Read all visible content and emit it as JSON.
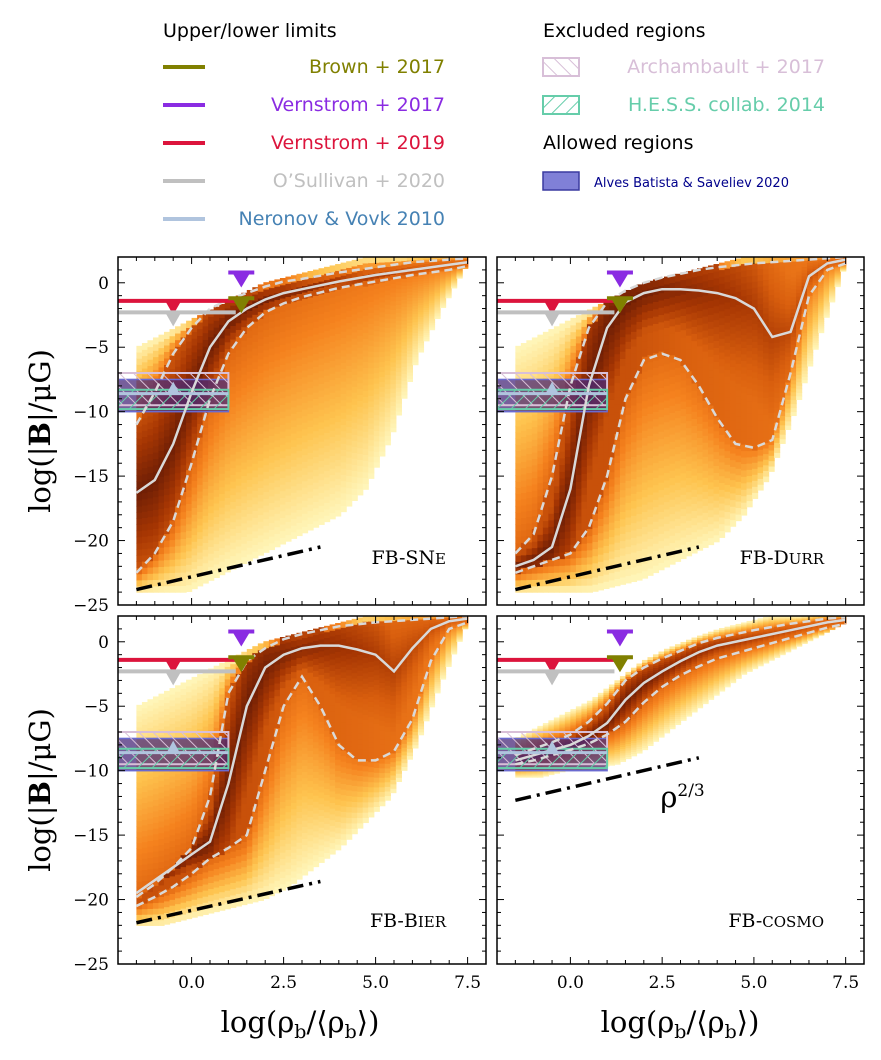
{
  "legend": {
    "upper_lower_title": "Upper/lower limits",
    "upper_lower": [
      {
        "label": "Brown + 2017",
        "color": "#808000"
      },
      {
        "label": "Vernstrom + 2017",
        "color": "#8a2be2"
      },
      {
        "label": "Vernstrom + 2019",
        "color": "#dc143c"
      },
      {
        "label": "O’Sullivan + 2020",
        "color": "#c0c0c0"
      },
      {
        "label": "Neronov & Vovk 2010",
        "color": "#b0c4de",
        "text_color": "#4682b4"
      }
    ],
    "excluded_title": "Excluded regions",
    "excluded": [
      {
        "label": "Archambault + 2017",
        "color": "#d8bfd8"
      },
      {
        "label": "H.E.S.S. collab. 2014",
        "color": "#66cdaa"
      }
    ],
    "allowed_title": "Allowed regions",
    "allowed": [
      {
        "label": "Alves Batista & Saveliev 2020",
        "color": "#6a6ad0",
        "text_color": "#00008b"
      }
    ]
  },
  "axes": {
    "xlabel": "log(ρ_b/⟨ρ_b⟩)",
    "xlabel_main": "log(ρ",
    "xlabel_sub": "b",
    "xlabel_mid": "/⟨ρ",
    "xlabel_end": "⟩)",
    "ylabel": "log(|B|/μG)",
    "ylabel_main": "log(|",
    "ylabel_b": "B",
    "ylabel_end": "|/μG)",
    "xticks": [
      "0.0",
      "2.5",
      "5.0",
      "7.5"
    ],
    "yticks": [
      "0",
      "−5",
      "−10",
      "−15",
      "−20",
      "−25"
    ]
  },
  "chart_data": [
    {
      "type": "heatmap",
      "panel": "FB-SNe",
      "label_main": "FB-SN",
      "label_small": "E",
      "xlim": [
        -2.0,
        8.0
      ],
      "ylim": [
        -25,
        2
      ],
      "median": {
        "x": [
          -1.5,
          -1,
          -0.5,
          0,
          0.5,
          1,
          1.5,
          2,
          2.5,
          3,
          4,
          5,
          6,
          7,
          7.5
        ],
        "y": [
          -16.3,
          -15.3,
          -12.5,
          -8.5,
          -5,
          -3,
          -2,
          -1.3,
          -0.8,
          -0.5,
          0.1,
          0.6,
          1.0,
          1.4,
          1.6
        ]
      },
      "p_low": {
        "x": [
          -1.5,
          -1,
          -0.5,
          0,
          0.5,
          1,
          1.5,
          2,
          2.5,
          3,
          4,
          5,
          6,
          7,
          7.5
        ],
        "y": [
          -22.5,
          -21,
          -18.5,
          -14,
          -9,
          -5.5,
          -3.5,
          -2.3,
          -1.6,
          -1.1,
          -0.4,
          0.1,
          0.6,
          1.0,
          1.3
        ]
      },
      "p_high": {
        "x": [
          -1.5,
          -1,
          -0.5,
          0,
          0.5,
          1,
          1.5,
          2,
          2.5,
          3,
          4,
          5,
          6,
          7,
          7.5
        ],
        "y": [
          -11,
          -8.5,
          -5.5,
          -3.5,
          -2,
          -1.3,
          -0.8,
          -0.3,
          0.1,
          0.3,
          0.8,
          1.2,
          1.6,
          1.8,
          1.9
        ]
      },
      "slope_line": {
        "x": [
          -1.5,
          3.5
        ],
        "y": [
          -23.8,
          -20.5
        ]
      },
      "density": {
        "xmin": -1.5,
        "xmax": 7.5,
        "lower": [
          -24,
          -24,
          -24,
          -23,
          -22,
          -21,
          -20,
          -19,
          -18,
          -16,
          -12,
          -6,
          -2,
          1.5
        ],
        "upper": [
          -5,
          -4,
          -3,
          -2,
          -1,
          0,
          0.5,
          1,
          1.5,
          2,
          2,
          2,
          2,
          2
        ],
        "peak_shape": "sigmoid"
      }
    },
    {
      "type": "heatmap",
      "panel": "FB-Durr",
      "label_main": "FB-D",
      "label_small": "URR",
      "xlim": [
        -2.0,
        8.0
      ],
      "ylim": [
        -25,
        2
      ],
      "median": {
        "x": [
          -1.5,
          -1,
          -0.5,
          0,
          0.5,
          1,
          1.5,
          2,
          2.5,
          3,
          3.5,
          4,
          4.5,
          5,
          5.5,
          6,
          6.5,
          7,
          7.5
        ],
        "y": [
          -22,
          -21.5,
          -20.5,
          -16,
          -8,
          -3.5,
          -1.5,
          -0.8,
          -0.5,
          -0.5,
          -0.6,
          -0.8,
          -1.2,
          -2,
          -4.2,
          -3.8,
          0.5,
          1.5,
          1.8
        ]
      },
      "p_low": {
        "x": [
          -1.5,
          -1,
          -0.5,
          0,
          0.5,
          1,
          1.5,
          2,
          2.5,
          3,
          3.5,
          4,
          4.5,
          5,
          5.5,
          6,
          6.5,
          7,
          7.5
        ],
        "y": [
          -22.5,
          -22,
          -21.5,
          -21,
          -19,
          -15,
          -9,
          -6,
          -5.5,
          -6,
          -8,
          -10.5,
          -12.5,
          -12.8,
          -12.2,
          -7,
          -1,
          1,
          1.5
        ]
      },
      "p_high": {
        "x": [
          -1.5,
          -1,
          -0.5,
          0,
          0.5,
          1,
          1.5,
          2,
          2.5,
          3,
          3.5,
          4,
          5,
          6,
          7,
          7.5
        ],
        "y": [
          -21,
          -19.5,
          -15,
          -8,
          -3.5,
          -1.5,
          -0.6,
          0,
          0.4,
          0.7,
          1,
          1.2,
          1.5,
          1.7,
          1.9,
          2
        ]
      },
      "slope_line": {
        "x": [
          -1.5,
          3.5
        ],
        "y": [
          -23.8,
          -20.5
        ]
      },
      "density": {
        "xmin": -1.5,
        "xmax": 7.5,
        "lower": [
          -24,
          -24,
          -24,
          -24,
          -23.5,
          -23,
          -22,
          -21,
          -20,
          -18,
          -15,
          -10,
          -4,
          1.5
        ],
        "upper": [
          -5,
          -4,
          -3,
          -2,
          -1,
          0,
          0.5,
          1,
          1.5,
          2,
          2,
          2,
          2,
          2
        ],
        "peak_shape": "sigmoid"
      }
    },
    {
      "type": "heatmap",
      "panel": "FB-Bier",
      "label_main": "FB-B",
      "label_small": "IER",
      "xlim": [
        -2.0,
        8.0
      ],
      "ylim": [
        -25,
        2
      ],
      "median": {
        "x": [
          -1.5,
          -1,
          -0.5,
          0,
          0.5,
          1,
          1.5,
          2,
          2.5,
          3,
          3.5,
          4,
          4.5,
          5,
          5.5,
          6,
          6.5,
          7,
          7.5
        ],
        "y": [
          -19.5,
          -18.5,
          -17.5,
          -16.5,
          -15.5,
          -11,
          -5,
          -2,
          -1,
          -0.5,
          -0.3,
          -0.3,
          -0.6,
          -1,
          -2.3,
          -0.5,
          1,
          1.6,
          1.8
        ]
      },
      "p_low": {
        "x": [
          -1.5,
          -1,
          -0.5,
          0,
          0.5,
          1,
          1.5,
          2,
          2.5,
          3,
          3.5,
          4,
          4.5,
          5,
          5.5,
          6,
          6.5,
          7,
          7.5
        ],
        "y": [
          -20.5,
          -19.8,
          -19,
          -18,
          -16.8,
          -16,
          -15,
          -10,
          -5,
          -2.7,
          -5,
          -8,
          -9.2,
          -9.2,
          -8.5,
          -6,
          -1.5,
          1,
          1.5
        ]
      },
      "p_high": {
        "x": [
          -1.5,
          -1,
          -0.5,
          0,
          0.5,
          1,
          1.5,
          2,
          2.5,
          3,
          3.5,
          4,
          5,
          6,
          7,
          7.5
        ],
        "y": [
          -19.8,
          -18.8,
          -17.5,
          -16,
          -12,
          -4,
          -1.5,
          -0.5,
          0.2,
          0.6,
          0.9,
          1.2,
          1.5,
          1.7,
          1.9,
          2
        ]
      },
      "slope_line": {
        "x": [
          -1.5,
          3.5
        ],
        "y": [
          -21.8,
          -18.6
        ]
      },
      "density": {
        "xmin": -1.5,
        "xmax": 7.5,
        "lower": [
          -22,
          -22,
          -21.5,
          -21,
          -20.5,
          -20,
          -19,
          -17.5,
          -16,
          -14,
          -12,
          -8,
          -3,
          1.5
        ],
        "upper": [
          -5,
          -4,
          -3,
          -2,
          -1,
          0,
          0.5,
          1,
          1.5,
          2,
          2,
          2,
          2,
          2
        ],
        "peak_shape": "sigmoid"
      }
    },
    {
      "type": "heatmap",
      "panel": "FB-cosmo",
      "label_main": "FB-",
      "label_small": "COSMO",
      "slope_label": "ρ",
      "slope_label_exp": "2/3",
      "xlim": [
        -2.0,
        8.0
      ],
      "ylim": [
        -25,
        2
      ],
      "median": {
        "x": [
          -1.5,
          -1,
          -0.5,
          0,
          0.5,
          1,
          1.5,
          2,
          2.5,
          3,
          3.5,
          4,
          5,
          6,
          7,
          7.5
        ],
        "y": [
          -9.2,
          -8.8,
          -8.4,
          -8,
          -7.3,
          -6.3,
          -4.5,
          -3.2,
          -2.3,
          -1.5,
          -0.8,
          -0.3,
          0.3,
          0.9,
          1.5,
          1.7
        ]
      },
      "p_low": {
        "x": [
          -1.5,
          -1,
          -0.5,
          0,
          0.5,
          1,
          1.5,
          2,
          2.5,
          3,
          3.5,
          4,
          5,
          6,
          7,
          7.5
        ],
        "y": [
          -9.5,
          -9.2,
          -8.8,
          -8.4,
          -7.9,
          -7.2,
          -6.2,
          -4.7,
          -3.5,
          -2.6,
          -1.9,
          -1.3,
          -0.5,
          0.3,
          1.1,
          1.4
        ]
      },
      "p_high": {
        "x": [
          -1.5,
          -1,
          -0.5,
          0,
          0.5,
          1,
          1.5,
          2,
          2.5,
          3,
          3.5,
          4,
          5,
          6,
          7,
          7.5
        ],
        "y": [
          -8.8,
          -8.3,
          -7.8,
          -7.2,
          -6.2,
          -4.8,
          -3,
          -2,
          -1.3,
          -0.7,
          -0.1,
          0.3,
          0.9,
          1.4,
          1.8,
          1.9
        ]
      },
      "slope_line": {
        "x": [
          -1.5,
          3.5
        ],
        "y": [
          -12.3,
          -9.0
        ]
      },
      "density": {
        "xmin": -1.5,
        "xmax": 7.5,
        "lower": [
          -10.5,
          -10.5,
          -10,
          -9.8,
          -9.5,
          -8.5,
          -7,
          -5.5,
          -4,
          -2.5,
          -1.5,
          -0.5,
          0.5,
          1.5
        ],
        "upper": [
          -7.5,
          -6.5,
          -5.5,
          -4.5,
          -3,
          -1.5,
          -0.5,
          0.3,
          1,
          1.5,
          2,
          2,
          2,
          2
        ],
        "peak_shape": "sigmoid"
      }
    }
  ],
  "observations": {
    "vernstrom2019_y": -1.4,
    "osullivan2020_y": -2.3,
    "limit_line_xmax": 1.2,
    "vernstrom2019_marker_x": -0.5,
    "osullivan2020_marker_x": -0.5,
    "brown2017": {
      "x": 1.35,
      "y": -1.2
    },
    "vernstrom2017": {
      "x": 1.35,
      "y": 0.8
    },
    "neronov_marker": {
      "x": -0.5,
      "y": -8.6
    },
    "archambault_range": [
      -9.5,
      -7.0
    ],
    "hess_range": [
      -9.8,
      -8.3
    ],
    "allowed_range": [
      -10.0,
      -7.5
    ],
    "region_x": [
      -2.0,
      1.0
    ]
  }
}
